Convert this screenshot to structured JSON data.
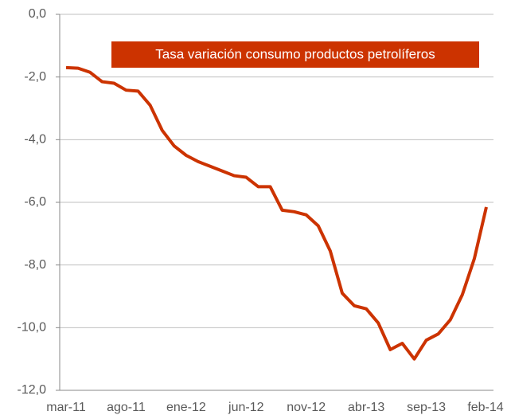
{
  "chart_data": {
    "type": "line",
    "title": "Tasa variación consumo productos petrolíferos",
    "categories": [
      "mar-11",
      null,
      null,
      null,
      null,
      "ago-11",
      null,
      null,
      null,
      null,
      "ene-12",
      null,
      null,
      null,
      null,
      "jun-12",
      null,
      null,
      null,
      null,
      "nov-12",
      null,
      null,
      null,
      null,
      "abr-13",
      null,
      null,
      null,
      null,
      "sep-13",
      null,
      null,
      null,
      null,
      "feb-14"
    ],
    "series": [
      {
        "name": "Tasa variación consumo productos petrolíferos",
        "color": "#cc3300",
        "values": [
          -1.7,
          -1.72,
          -1.85,
          -2.15,
          -2.2,
          -2.42,
          -2.45,
          -2.9,
          -3.7,
          -4.2,
          -4.5,
          -4.7,
          -4.85,
          -5.0,
          -5.15,
          -5.2,
          -5.5,
          -5.5,
          -6.25,
          -6.3,
          -6.4,
          -6.75,
          -7.55,
          -8.9,
          -9.3,
          -9.4,
          -9.85,
          -10.7,
          -10.5,
          -11.0,
          -10.4,
          -10.2,
          -9.75,
          -8.95,
          -7.8,
          -6.15
        ]
      }
    ],
    "ylim": [
      -12,
      0
    ],
    "yticks": [
      {
        "value": 0,
        "label": "0,0"
      },
      {
        "value": -2,
        "label": "-2,0"
      },
      {
        "value": -4,
        "label": "-4,0"
      },
      {
        "value": -6,
        "label": "-6,0"
      },
      {
        "value": -8,
        "label": "-8,0"
      },
      {
        "value": -10,
        "label": "-10,0"
      },
      {
        "value": -12,
        "label": "-12,0"
      }
    ],
    "grid": true
  }
}
